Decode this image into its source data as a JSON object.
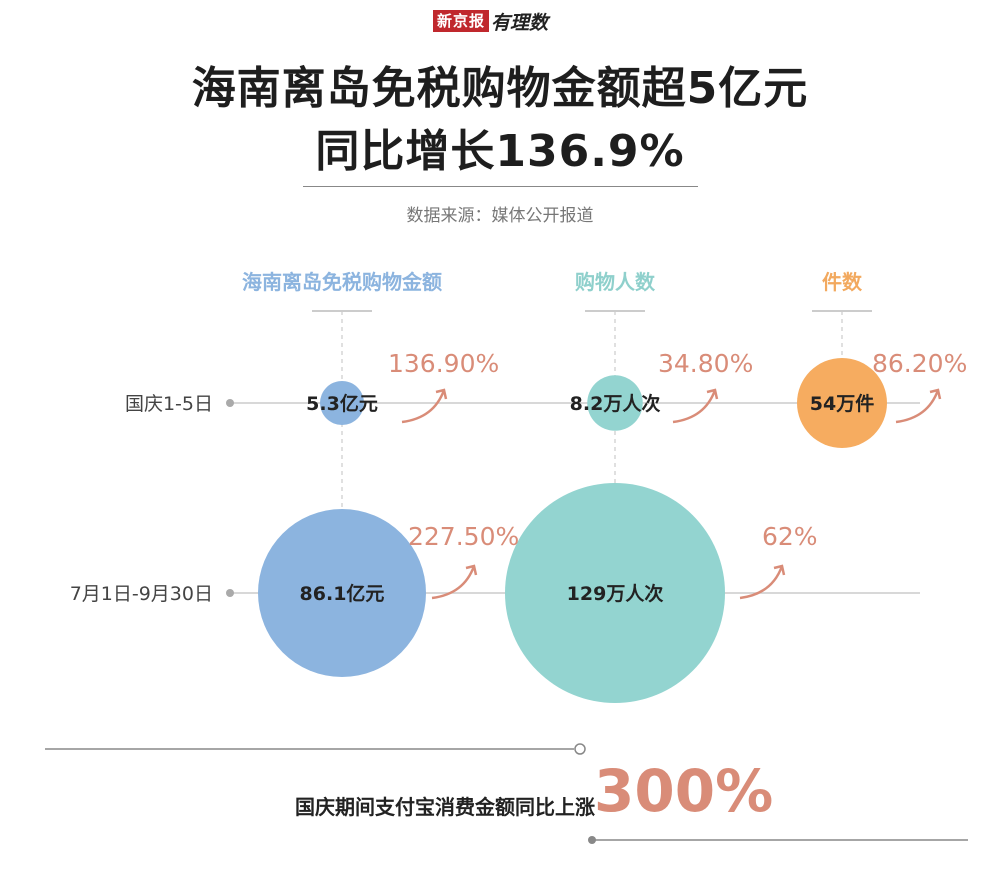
{
  "header": {
    "brand": "新京报",
    "brand_sub": "有理数",
    "title_line1": "海南离岛免税购物金额超5亿元",
    "title_line2": "同比增长136.9%",
    "source": "数据来源：媒体公开报道"
  },
  "chart_data": {
    "type": "bubble",
    "columns": [
      {
        "key": "amount",
        "label": "海南离岛免税购物金额",
        "unit": "亿元",
        "color": "#8cb4df",
        "label_color": "#8cb4df"
      },
      {
        "key": "visitors",
        "label": "购物人数",
        "unit": "万人次",
        "color": "#93d4d0",
        "label_color": "#8fd0cc"
      },
      {
        "key": "items",
        "label": "件数",
        "unit": "万件",
        "color": "#f6ac60",
        "label_color": "#f2a95f"
      }
    ],
    "rows": [
      {
        "label": "国庆1-5日",
        "cells": [
          {
            "value": 5.3,
            "text": "5.3亿元",
            "growth": "136.90%"
          },
          {
            "value": 8.2,
            "text": "8.2万人次",
            "growth": "34.80%"
          },
          {
            "value": 54,
            "text": "54万件",
            "growth": "86.20%"
          }
        ]
      },
      {
        "label": "7月1日-9月30日",
        "cells": [
          {
            "value": 86.1,
            "text": "86.1亿元",
            "growth": "227.50%"
          },
          {
            "value": 129,
            "text": "129万人次",
            "growth": "62%"
          }
        ]
      }
    ],
    "reference_max": {
      "amount": 86.1,
      "visitors": 129,
      "items": 54
    },
    "colors": {
      "growth": "#d98c78",
      "line": "#cccccc",
      "dot": "#aaaaaa"
    }
  },
  "footer": {
    "text": "国庆期间支付宝消费金额同比上涨",
    "big": "300%"
  }
}
